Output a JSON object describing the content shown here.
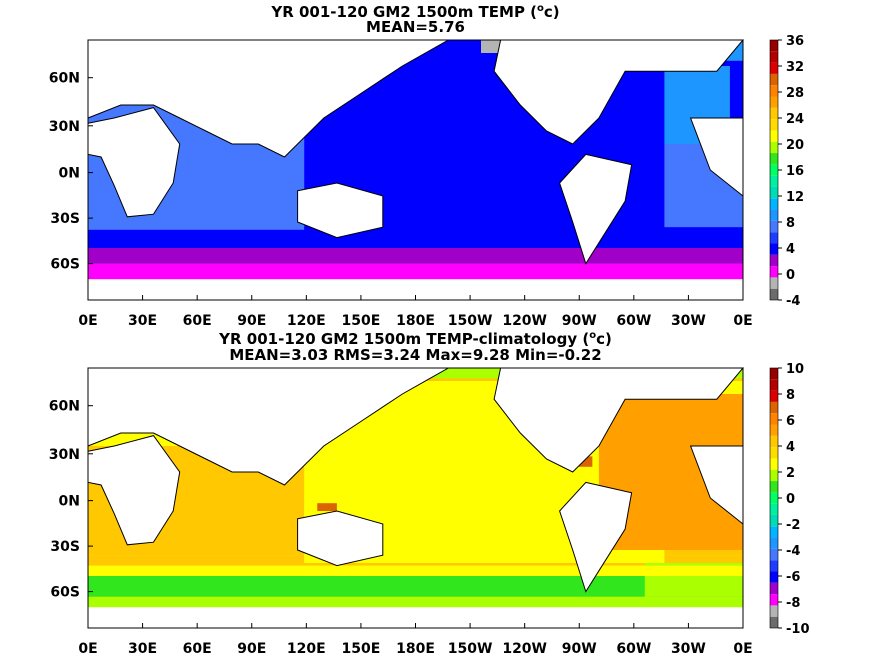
{
  "chart_data": [
    {
      "type": "heatmap",
      "title": "YR 001-120 GM2 1500m TEMP (",
      "title_sup": "o",
      "title_end": "c)",
      "subtitle": "MEAN=5.76",
      "x_ticks": [
        "0E",
        "30E",
        "60E",
        "90E",
        "120E",
        "150E",
        "180E",
        "150W",
        "120W",
        "90W",
        "60W",
        "30W",
        "0E"
      ],
      "y_ticks": [
        "60N",
        "30N",
        "0N",
        "30S",
        "60S"
      ],
      "colorbar": {
        "ticks": [
          "36",
          "32",
          "28",
          "24",
          "20",
          "16",
          "12",
          "8",
          "4",
          "0",
          "-4"
        ],
        "colors": [
          "#6c6c6c",
          "#b4b4b4",
          "#ff00ff",
          "#a000c8",
          "#0000ff",
          "#1e3cff",
          "#4678ff",
          "#1e96ff",
          "#00b4ff",
          "#00dcb4",
          "#00f0a0",
          "#00ff60",
          "#32e61e",
          "#aaff00",
          "#ffff00",
          "#ffdc00",
          "#ffc800",
          "#ffa000",
          "#ff8200",
          "#dc6400",
          "#dc0000",
          "#b40000",
          "#960000"
        ],
        "range": [
          -4,
          36
        ]
      },
      "regions": [
        {
          "name": "southern-ocean-band",
          "value": -2
        },
        {
          "name": "antarctic-circumpolar",
          "value": 2
        },
        {
          "name": "pacific-interior",
          "value": 3
        },
        {
          "name": "indian-ocean",
          "value": 4
        },
        {
          "name": "atlantic",
          "value": 6
        }
      ]
    },
    {
      "type": "heatmap",
      "title": "YR 001-120 GM2 1500m TEMP-climatology (",
      "title_sup": "o",
      "title_end": "c)",
      "subtitle": "MEAN=3.03   RMS=3.24   Max=9.28   Min=-0.22",
      "x_ticks": [
        "0E",
        "30E",
        "60E",
        "90E",
        "120E",
        "150E",
        "180E",
        "150W",
        "120W",
        "90W",
        "60W",
        "30W",
        "0E"
      ],
      "y_ticks": [
        "60N",
        "30N",
        "0N",
        "30S",
        "60S"
      ],
      "colorbar": {
        "ticks": [
          "10",
          "8",
          "6",
          "4",
          "2",
          "0",
          "-2",
          "-4",
          "-6",
          "-8",
          "-10"
        ],
        "colors": [
          "#6c6c6c",
          "#b4b4b4",
          "#ff00ff",
          "#a000c8",
          "#0000ff",
          "#1e3cff",
          "#4678ff",
          "#1e96ff",
          "#00b4ff",
          "#00dcb4",
          "#00f0a0",
          "#00ff60",
          "#32e61e",
          "#aaff00",
          "#ffff00",
          "#ffdc00",
          "#ffc800",
          "#ffa000",
          "#ff8200",
          "#dc6400",
          "#dc0000",
          "#b40000",
          "#960000"
        ],
        "range": [
          -10,
          10
        ]
      },
      "regions": [
        {
          "name": "southern-ocean-green",
          "value": 1
        },
        {
          "name": "pacific-interior",
          "value": 3.5
        },
        {
          "name": "indian-ocean",
          "value": 4
        },
        {
          "name": "atlantic",
          "value": 4.5
        },
        {
          "name": "gulf-of-mexico",
          "value": 7
        }
      ]
    }
  ]
}
